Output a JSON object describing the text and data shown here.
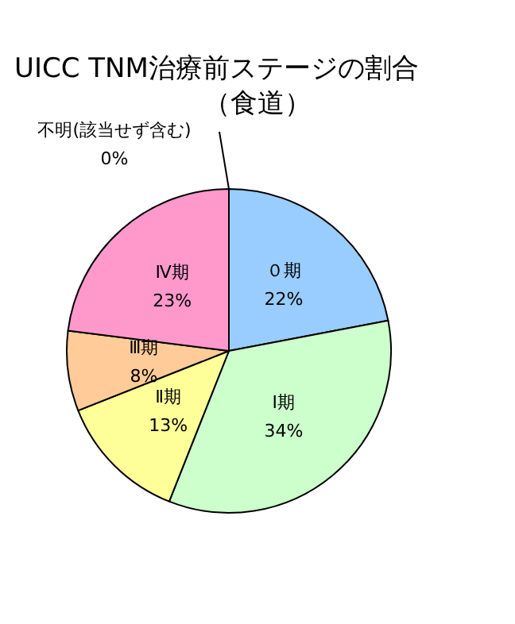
{
  "chart_data": {
    "type": "pie",
    "title": "UICC TNM治療前ステージの割合",
    "subtitle": "（食道）",
    "categories": [
      "０期",
      "Ⅰ期",
      "Ⅱ期",
      "Ⅲ期",
      "Ⅳ期",
      "不明(該当せず含む)"
    ],
    "values": [
      22,
      34,
      13,
      8,
      23,
      0
    ],
    "value_labels": [
      "22%",
      "34%",
      "13%",
      "8%",
      "23%",
      "0%"
    ],
    "colors": [
      "#99ccff",
      "#ccffcc",
      "#ffff99",
      "#ffcc99",
      "#ff99cc",
      "#cc99ff"
    ],
    "legend": false
  }
}
